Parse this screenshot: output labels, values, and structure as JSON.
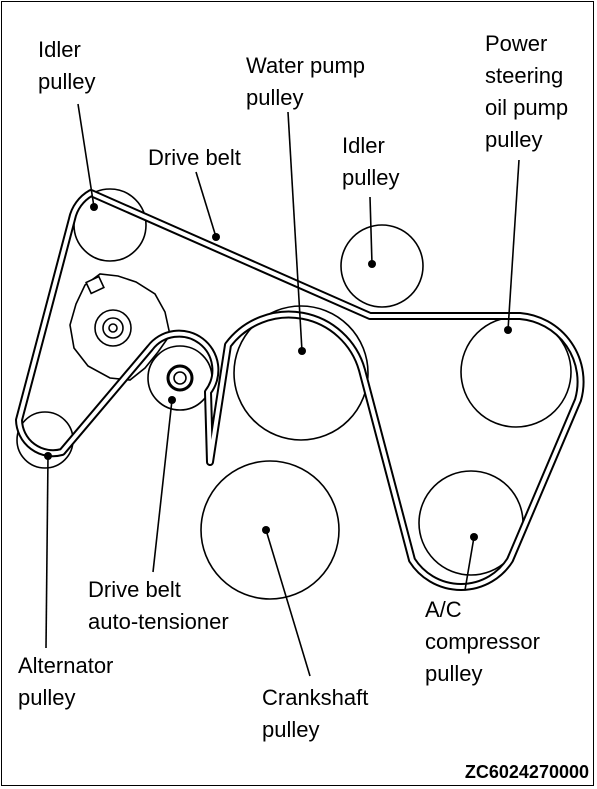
{
  "labels": {
    "idler_pulley_top_left": [
      "Idler",
      "pulley"
    ],
    "water_pump_pulley": [
      "Water pump",
      "pulley"
    ],
    "power_steering_pulley": [
      "Power",
      "steering",
      "oil pump",
      "pulley"
    ],
    "drive_belt": [
      "Drive belt"
    ],
    "idler_pulley_center": [
      "Idler",
      "pulley"
    ],
    "drive_belt_auto_tensioner": [
      "Drive belt",
      "auto-tensioner"
    ],
    "ac_compressor_pulley": [
      "A/C",
      "compressor",
      "pulley"
    ],
    "alternator_pulley": [
      "Alternator",
      "pulley"
    ],
    "crankshaft_pulley": [
      "Crankshaft",
      "pulley"
    ]
  },
  "diagram_code": "ZC6024270000",
  "colors": {
    "line": "#000000",
    "background": "#ffffff"
  }
}
